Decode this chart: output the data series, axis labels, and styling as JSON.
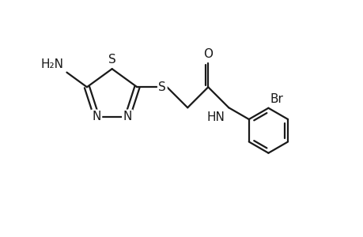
{
  "background_color": "#ffffff",
  "line_color": "#1a1a1a",
  "line_width": 1.6,
  "font_size": 11,
  "figsize": [
    4.6,
    3.0
  ],
  "dpi": 100,
  "xlim": [
    0,
    9.2
  ],
  "ylim": [
    0,
    6.0
  ]
}
